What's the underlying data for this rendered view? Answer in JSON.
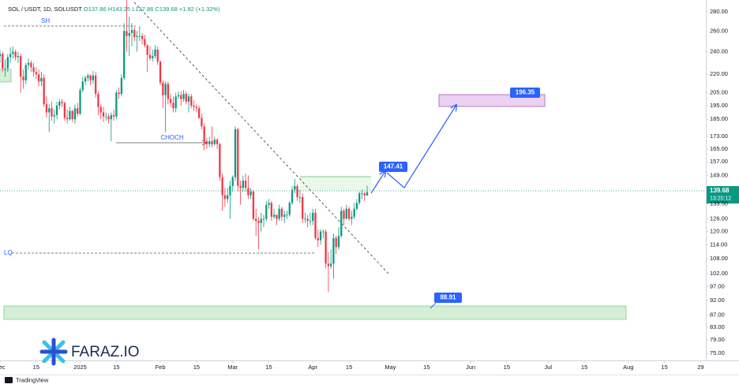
{
  "chart_data": {
    "type": "candlestick",
    "header": {
      "symbol": "SOL / USDT, 1D, SOLUSDT",
      "ohlc": [
        "O137.86",
        "H143.25",
        "L137.86",
        "C139.68"
      ],
      "change": "+1.82 (+1.32%)"
    },
    "annotations": {
      "swing_high": "SH",
      "choch": "CHOCH",
      "liquidity": "LQ"
    },
    "level_labels": {
      "breakout": "147.41",
      "target": "196.35",
      "support": "88.91"
    },
    "price_label": {
      "price": "139.68",
      "countdown": "13:20:12"
    },
    "watermark": "FARAZ.IO",
    "footer": "TradingView",
    "log_scale": true,
    "grid": false,
    "up_color": "#089981",
    "down_color": "#f23645",
    "ylim": [
      73,
      293
    ],
    "yticks": [
      {
        "value": 280,
        "label": "280.00"
      },
      {
        "value": 260,
        "label": "260.00"
      },
      {
        "value": 240,
        "label": "240.00"
      },
      {
        "value": 220,
        "label": "220.00"
      },
      {
        "value": 205,
        "label": "205.00"
      },
      {
        "value": 195,
        "label": "195.00"
      },
      {
        "value": 185,
        "label": "185.00"
      },
      {
        "value": 173,
        "label": "173.00"
      },
      {
        "value": 165,
        "label": "165.00"
      },
      {
        "value": 157,
        "label": "157.00"
      },
      {
        "value": 149,
        "label": "149.00"
      },
      {
        "value": 133.5,
        "label": "133.50"
      },
      {
        "value": 126,
        "label": "126.00"
      },
      {
        "value": 120,
        "label": "120.00"
      },
      {
        "value": 114,
        "label": "114.00"
      },
      {
        "value": 108,
        "label": "108.00"
      },
      {
        "value": 102,
        "label": "102.00"
      },
      {
        "value": 97,
        "label": "97.00"
      },
      {
        "value": 92,
        "label": "92.00"
      },
      {
        "value": 87,
        "label": "87.00"
      },
      {
        "value": 83,
        "label": "83.00"
      },
      {
        "value": 79,
        "label": "79.00"
      },
      {
        "value": 75,
        "label": "75.00"
      }
    ],
    "xlim": [
      "2024-12-01",
      "2025-08-31"
    ],
    "xticks": [
      {
        "value": "2024-12-01",
        "label": "Dec"
      },
      {
        "value": "2024-12-15",
        "label": "15"
      },
      {
        "value": "2025-01-01",
        "label": "2025"
      },
      {
        "value": "2025-01-15",
        "label": "15"
      },
      {
        "value": "2025-02-01",
        "label": "Feb"
      },
      {
        "value": "2025-02-15",
        "label": "15"
      },
      {
        "value": "2025-03-01",
        "label": "Mar"
      },
      {
        "value": "2025-03-15",
        "label": "15"
      },
      {
        "value": "2025-04-01",
        "label": "Apr"
      },
      {
        "value": "2025-04-15",
        "label": "15"
      },
      {
        "value": "2025-05-01",
        "label": "May"
      },
      {
        "value": "2025-05-15",
        "label": "15"
      },
      {
        "value": "2025-06-01",
        "label": "Jun"
      },
      {
        "value": "2025-06-15",
        "label": "15"
      },
      {
        "value": "2025-07-01",
        "label": "Jul"
      },
      {
        "value": "2025-07-15",
        "label": "15"
      },
      {
        "value": "2025-08-01",
        "label": "Aug"
      },
      {
        "value": "2025-08-15",
        "label": "15"
      },
      {
        "value": "2025-08-29",
        "label": "29"
      }
    ],
    "start": "2024-12-01",
    "open": [
      236,
      238,
      225,
      225,
      235,
      238,
      240,
      235,
      236,
      218,
      215,
      228,
      230,
      226,
      222,
      220,
      214,
      217,
      196,
      190,
      193,
      187,
      188,
      195,
      198,
      197,
      186,
      185,
      191,
      185,
      193,
      189,
      207,
      214,
      217,
      219,
      215,
      219,
      204,
      194,
      190,
      187,
      187,
      185,
      188,
      187,
      205,
      204,
      217,
      260,
      255,
      258,
      261,
      254,
      255,
      255,
      252,
      246,
      237,
      234,
      236,
      242,
      231,
      213,
      203,
      212,
      200,
      197,
      193,
      202,
      203,
      200,
      204,
      198,
      202,
      195,
      194,
      193,
      186,
      180,
      170,
      168,
      170,
      168,
      171,
      168,
      148,
      138,
      136,
      138,
      143,
      148,
      178,
      143,
      142,
      146,
      142,
      138,
      140,
      126,
      125,
      124,
      126,
      126,
      133,
      134,
      127,
      128,
      126,
      131,
      127,
      128,
      128,
      134,
      141,
      143,
      137,
      137,
      126,
      126,
      125,
      125,
      129,
      117,
      116,
      120,
      120,
      106,
      105,
      106,
      117,
      113,
      118,
      130,
      126,
      131,
      126,
      127,
      131,
      134,
      139,
      139,
      137.86
    ],
    "high": [
      242,
      240,
      233,
      238,
      244,
      245,
      242,
      240,
      238,
      224,
      230,
      234,
      232,
      230,
      226,
      224,
      222,
      220,
      202,
      196,
      198,
      192,
      198,
      200,
      200,
      198,
      192,
      194,
      192,
      196,
      197,
      209,
      218,
      219,
      221,
      220,
      223,
      222,
      206,
      196,
      194,
      190,
      189,
      190,
      192,
      207,
      209,
      220,
      268,
      295,
      275,
      268,
      264,
      260,
      265,
      258,
      256,
      247,
      245,
      242,
      246,
      245,
      232,
      215,
      214,
      214,
      204,
      202,
      205,
      206,
      206,
      207,
      206,
      204,
      204,
      199,
      196,
      195,
      189,
      182,
      172,
      173,
      180,
      173,
      172,
      169,
      150,
      142,
      142,
      146,
      149,
      180,
      179,
      146,
      149,
      150,
      149,
      142,
      141,
      131,
      127,
      129,
      128,
      135,
      136,
      135,
      131,
      128,
      133,
      132,
      130,
      130,
      135,
      143,
      147,
      144,
      141,
      139,
      129,
      128,
      129,
      131,
      131,
      121,
      121,
      121,
      121,
      111,
      112,
      119,
      118,
      122,
      132,
      131,
      133,
      132,
      130,
      134,
      136,
      140,
      141,
      140,
      143.25
    ],
    "low": [
      230,
      222,
      218,
      222,
      230,
      234,
      232,
      230,
      205,
      208,
      212,
      224,
      222,
      218,
      216,
      210,
      210,
      194,
      186,
      176,
      184,
      182,
      185,
      192,
      194,
      184,
      182,
      184,
      183,
      182,
      187,
      188,
      205,
      211,
      214,
      211,
      212,
      201,
      188,
      185,
      183,
      184,
      182,
      170,
      184,
      185,
      200,
      202,
      215,
      240,
      236,
      245,
      250,
      240,
      250,
      247,
      244,
      222,
      232,
      231,
      234,
      228,
      211,
      193,
      176,
      196,
      194,
      190,
      190,
      200,
      195,
      198,
      196,
      190,
      193,
      191,
      190,
      185,
      178,
      164,
      165,
      166,
      166,
      167,
      165,
      146,
      130,
      132,
      134,
      126,
      140,
      146,
      140,
      133,
      140,
      140,
      136,
      136,
      125,
      118,
      112,
      120,
      122,
      125,
      131,
      125,
      126,
      123,
      125,
      125,
      124,
      126,
      127,
      133,
      139,
      135,
      134,
      124,
      124,
      122,
      123,
      123,
      116,
      113,
      114,
      117,
      104,
      95,
      104,
      100,
      110,
      112,
      117,
      123,
      126,
      125,
      123,
      126,
      130,
      133,
      136,
      135,
      137.86
    ],
    "close": [
      238,
      225,
      225,
      235,
      238,
      240,
      235,
      236,
      218,
      215,
      228,
      230,
      226,
      222,
      220,
      214,
      217,
      196,
      190,
      193,
      187,
      188,
      195,
      198,
      197,
      186,
      185,
      191,
      185,
      193,
      189,
      207,
      214,
      217,
      219,
      215,
      219,
      204,
      194,
      190,
      187,
      187,
      185,
      188,
      187,
      205,
      204,
      217,
      260,
      255,
      258,
      261,
      254,
      255,
      255,
      252,
      246,
      237,
      234,
      236,
      242,
      231,
      213,
      203,
      212,
      200,
      197,
      193,
      202,
      203,
      200,
      204,
      198,
      202,
      195,
      194,
      193,
      186,
      180,
      170,
      168,
      170,
      168,
      171,
      168,
      148,
      138,
      136,
      138,
      143,
      148,
      178,
      143,
      142,
      146,
      142,
      138,
      140,
      126,
      125,
      124,
      126,
      126,
      133,
      134,
      127,
      128,
      126,
      131,
      127,
      128,
      128,
      134,
      141,
      143,
      137,
      137,
      126,
      126,
      125,
      125,
      129,
      117,
      116,
      120,
      120,
      106,
      105,
      106,
      117,
      113,
      118,
      130,
      126,
      131,
      126,
      127,
      131,
      134,
      139,
      139,
      137.86,
      139.68
    ]
  }
}
